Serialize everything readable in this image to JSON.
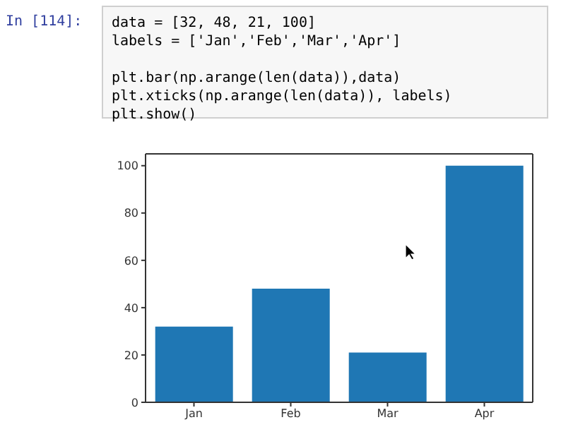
{
  "chart_data": {
    "type": "bar",
    "annotations": [
      "In [114]:",
      "data = [32, 48, 21, 100]",
      "labels = ['Jan','Feb','Mar','Apr']",
      "plt.bar(np.arange(len(data)),data)",
      "plt.xticks(np.arange(len(data)), labels)",
      "plt.show()"
    ],
    "categories": [
      "Jan",
      "Feb",
      "Mar",
      "Apr"
    ],
    "values": [
      32,
      48,
      21,
      100
    ],
    "color": "#1f77b4",
    "ylim": [
      0,
      105
    ],
    "yticks": [
      0,
      20,
      40,
      60,
      80,
      100
    ]
  }
}
